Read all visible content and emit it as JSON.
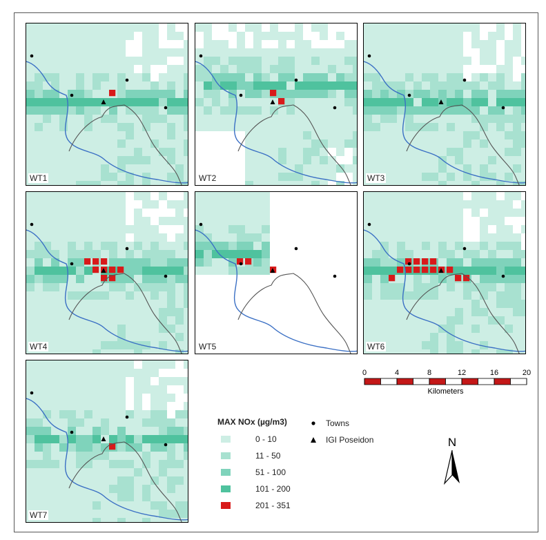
{
  "panels": [
    {
      "label": "WT1",
      "hot": [
        [
          10,
          8
        ]
      ],
      "cover": "full",
      "band": "mid"
    },
    {
      "label": "WT2",
      "hot": [
        [
          9,
          8
        ],
        [
          10,
          9
        ]
      ],
      "cover": "partial",
      "band": "upper"
    },
    {
      "label": "WT3",
      "hot": [],
      "cover": "full",
      "band": "mid"
    },
    {
      "label": "WT4",
      "hot": [
        [
          7,
          8
        ],
        [
          8,
          8
        ],
        [
          9,
          8
        ],
        [
          8,
          9
        ],
        [
          9,
          9
        ],
        [
          10,
          9
        ],
        [
          9,
          10
        ],
        [
          10,
          10
        ],
        [
          11,
          9
        ]
      ],
      "cover": "full",
      "band": "mid"
    },
    {
      "label": "WT5",
      "hot": [
        [
          5,
          8
        ],
        [
          6,
          8
        ],
        [
          9,
          9
        ]
      ],
      "cover": "tl",
      "band": "upper"
    },
    {
      "label": "WT6",
      "hot": [
        [
          4,
          9
        ],
        [
          5,
          9
        ],
        [
          6,
          9
        ],
        [
          7,
          9
        ],
        [
          8,
          9
        ],
        [
          9,
          9
        ],
        [
          10,
          9
        ],
        [
          5,
          8
        ],
        [
          6,
          8
        ],
        [
          7,
          8
        ],
        [
          8,
          8
        ],
        [
          11,
          10
        ],
        [
          12,
          10
        ],
        [
          3,
          10
        ]
      ],
      "cover": "full",
      "band": "mid"
    },
    {
      "label": "WT7",
      "hot": [
        [
          10,
          10
        ]
      ],
      "cover": "full",
      "band": "mid"
    }
  ],
  "legend": {
    "title": "MAX NOx (µg/m3)",
    "classes": [
      {
        "label": "0 - 10",
        "color": "#cdeee4"
      },
      {
        "label": "11 - 50",
        "color": "#a8e1d0"
      },
      {
        "label": "51 - 100",
        "color": "#7fd3bb"
      },
      {
        "label": "101 - 200",
        "color": "#4fc29e"
      },
      {
        "label": "201 - 351",
        "color": "#d81a1a"
      }
    ]
  },
  "symbols": [
    {
      "label": "Towns",
      "icon": "circle"
    },
    {
      "label": "IGI Poseidon",
      "icon": "triangle"
    }
  ],
  "scale": {
    "ticks": [
      "0",
      "4",
      "8",
      "12",
      "16",
      "20"
    ],
    "unit": "Kilometers"
  },
  "north": {
    "label": "N"
  },
  "colors": {
    "river": "#3a6fc4",
    "boundary": "#555555"
  }
}
